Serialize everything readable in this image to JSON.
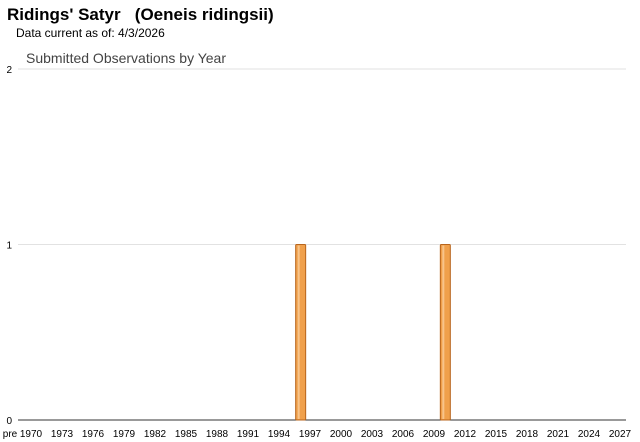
{
  "header": {
    "title": "Ridings' Satyr   (Oeneis ridingsii)",
    "data_current": "Data current as of: 4/3/2026"
  },
  "chart_data": {
    "type": "bar",
    "title": "Submitted Observations by Year",
    "xlabel": "",
    "ylabel": "",
    "ylim": [
      0,
      2
    ],
    "yticks": [
      0,
      1,
      2
    ],
    "grid": true,
    "legend": "none",
    "bar_color": "#f0a04b",
    "bar_stroke": "#b8651c",
    "xticks": [
      "pre",
      "1970",
      "1973",
      "1976",
      "1979",
      "1982",
      "1985",
      "1988",
      "1991",
      "1994",
      "1997",
      "2000",
      "2003",
      "2006",
      "2009",
      "2012",
      "2015",
      "2018",
      "2021",
      "2024",
      "2027"
    ],
    "bars": [
      {
        "x": 1996,
        "value": 1
      },
      {
        "x": 2010,
        "value": 1
      }
    ]
  }
}
